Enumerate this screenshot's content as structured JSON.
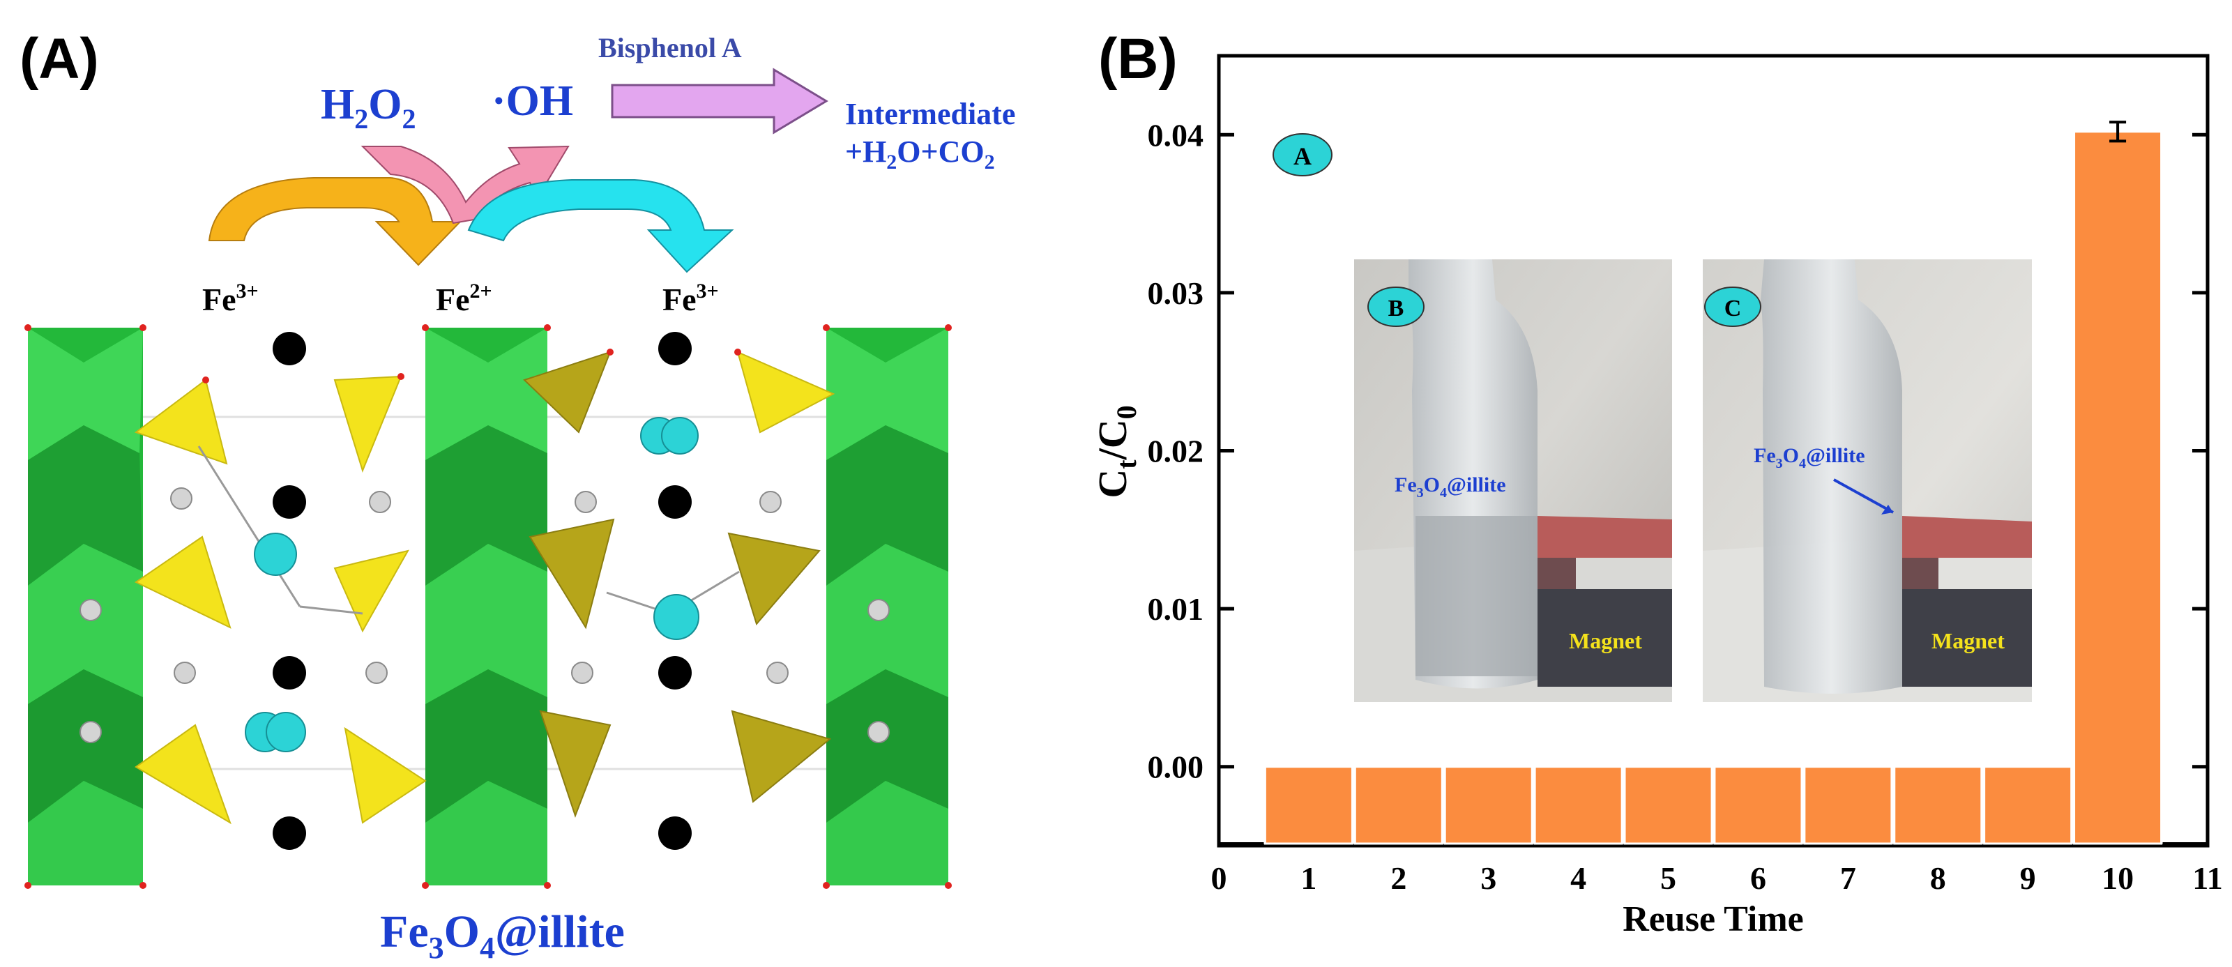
{
  "panel_a": {
    "label": "(A)",
    "bpa": "Bisphenol A",
    "h2o2": "H",
    "h2o2_sub": "2",
    "h2o2_o": "O",
    "h2o2_sub2": "2",
    "oh": "·OH",
    "products_line1": "Intermediate",
    "products_line2": "+H",
    "products_sub1": "2",
    "products_mid": "O+CO",
    "products_sub2": "2",
    "fe_left": "Fe",
    "fe_left_sup": "3+",
    "fe_mid": "Fe",
    "fe_mid_sup": "2+",
    "fe_right": "Fe",
    "fe_right_sup": "3+",
    "material": "Fe",
    "material_sub1": "3",
    "material_o": "O",
    "material_sub2": "4",
    "material_rest": "@illite",
    "colors": {
      "blue_text": "#1c3fd0",
      "bpa_text": "#3a4aa8",
      "octahedra": "#21c43c",
      "tetrahedra": "#f3e31c",
      "tetra_dark": "#b6a51a",
      "cyan_atom": "#2cd3d6",
      "orange_arrow": "#f6b21a",
      "pink_arrow": "#f394b2",
      "cyan_arrow": "#26e2ee",
      "violet_arrow": "#e3a6ef"
    }
  },
  "panel_b": {
    "label": "(B)",
    "inset_labels": {
      "a": "A",
      "b": "B",
      "c": "C"
    },
    "photo_text_b": {
      "material": "Fe",
      "sub1": "3",
      "o": "O",
      "sub2": "4",
      "rest": "@illite",
      "magnet": "Magnet"
    },
    "photo_text_c": {
      "material": "Fe",
      "sub1": "3",
      "o": "O",
      "sub2": "4",
      "rest": "@illite",
      "magnet": "Magnet"
    },
    "bar_color": "#fb8c3f"
  },
  "chart_data": {
    "type": "bar",
    "title": "",
    "xlabel": "Reuse Time",
    "ylabel": "C",
    "ylabel_sub_t": "t",
    "ylabel_slash": "/C",
    "ylabel_sub_0": "0",
    "categories": [
      1,
      2,
      3,
      4,
      5,
      6,
      7,
      8,
      9,
      10
    ],
    "values": [
      0.0,
      0.0,
      0.0,
      0.0,
      0.0,
      0.0,
      0.0,
      0.0,
      0.0,
      0.0402
    ],
    "error": [
      0,
      0,
      0,
      0,
      0,
      0,
      0,
      0,
      0,
      0.0006
    ],
    "xlim": [
      0,
      11
    ],
    "ylim": [
      -0.005,
      0.045
    ],
    "xticks": [
      "0",
      "1",
      "2",
      "3",
      "4",
      "5",
      "6",
      "7",
      "8",
      "9",
      "10",
      "11"
    ],
    "yticks": [
      "0.00",
      "0.01",
      "0.02",
      "0.03",
      "0.04"
    ],
    "ytick_values": [
      0.0,
      0.01,
      0.02,
      0.03,
      0.04
    ],
    "grid": false,
    "legend": "none"
  }
}
